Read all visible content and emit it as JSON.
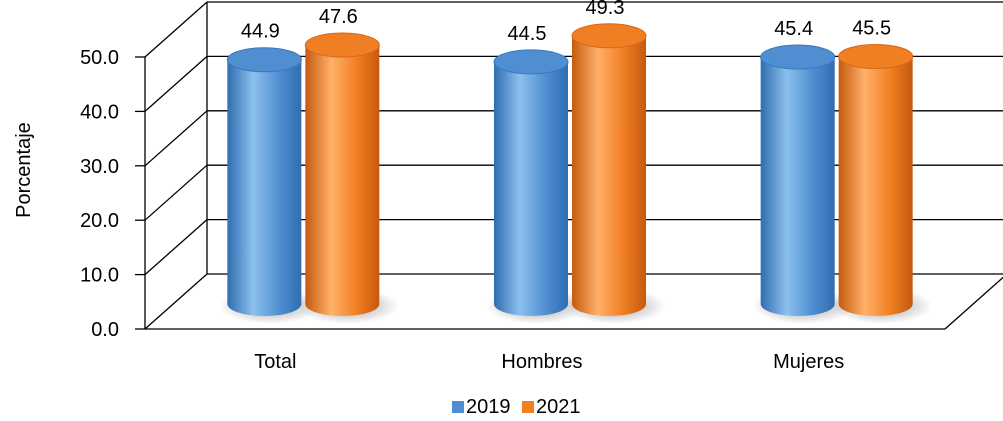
{
  "chart_data": {
    "type": "bar",
    "categories": [
      "Total",
      "Hombres",
      "Mujeres"
    ],
    "series": [
      {
        "name": "2019",
        "values": [
          44.9,
          44.5,
          45.4
        ],
        "color": "#4f8fd1"
      },
      {
        "name": "2021",
        "values": [
          47.6,
          49.3,
          45.5
        ],
        "color": "#f07e22"
      }
    ],
    "ylabel": "Porcentaje",
    "ylim": [
      0,
      50
    ],
    "yticks": [
      "0.0",
      "10.0",
      "20.0",
      "30.0",
      "40.0",
      "50.0"
    ],
    "data_labels": [
      [
        "44.9",
        "44.5",
        "45.4"
      ],
      [
        "47.6",
        "49.3",
        "45.5"
      ]
    ],
    "grid": true,
    "legend_position": "bottom",
    "style": "3d-cylinder"
  }
}
